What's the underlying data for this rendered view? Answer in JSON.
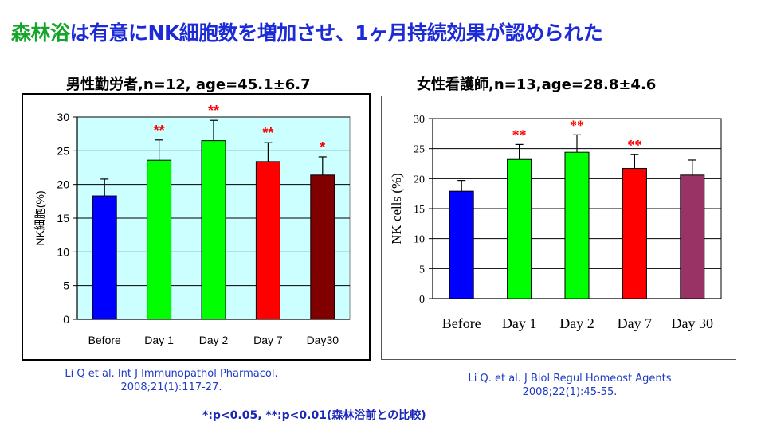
{
  "slide": {
    "title_highlight": "森林浴",
    "title_rest": "は有意にNK細胞数を増加させ、1ヶ月持続効果が認められた",
    "footnote": "*:p<0.05, **:p<0.01(森林浴前との比較)"
  },
  "chart_data": [
    {
      "type": "bar",
      "title": "男性勤労者,n=12, age=45.1±6.7",
      "categories": [
        "Before",
        "Day 1",
        "Day 2",
        "Day 7",
        "Day30"
      ],
      "values": [
        18.3,
        23.6,
        26.5,
        23.4,
        21.4
      ],
      "errors": [
        2.5,
        3.0,
        3.0,
        2.8,
        2.7
      ],
      "significance": [
        "",
        "**",
        "**",
        "**",
        "*"
      ],
      "colors": [
        "#0000ff",
        "#00ff00",
        "#00ff00",
        "#ff0000",
        "#800000"
      ],
      "ylabel": "NK細胞(%)",
      "xlabel": "",
      "ylim": [
        0,
        30
      ],
      "yticks": [
        0,
        5,
        10,
        15,
        20,
        25,
        30
      ],
      "grid": true,
      "plot_background": "#ccffff",
      "citation": [
        "Li Q et al. Int J Immunopathol Pharmacol.",
        "2008;21(1):117-27."
      ]
    },
    {
      "type": "bar",
      "title": "女性看護師,n=13,age=28.8±4.6",
      "categories": [
        "Before",
        "Day 1",
        "Day 2",
        "Day 7",
        "Day 30"
      ],
      "values": [
        17.9,
        23.2,
        24.4,
        21.7,
        20.6
      ],
      "errors": [
        1.8,
        2.5,
        2.9,
        2.3,
        2.5
      ],
      "significance": [
        "",
        "**",
        "**",
        "**",
        ""
      ],
      "colors": [
        "#0000ff",
        "#00ff00",
        "#00ff00",
        "#ff0000",
        "#993366"
      ],
      "ylabel": "NK cells (%)",
      "xlabel": "",
      "ylim": [
        0,
        30
      ],
      "yticks": [
        0,
        5,
        10,
        15,
        20,
        25,
        30
      ],
      "grid": true,
      "plot_background": "#ffffff",
      "citation": [
        "Li Q. et al. J Biol Regul Homeost Agents",
        "2008;22(1):45-55."
      ]
    }
  ]
}
